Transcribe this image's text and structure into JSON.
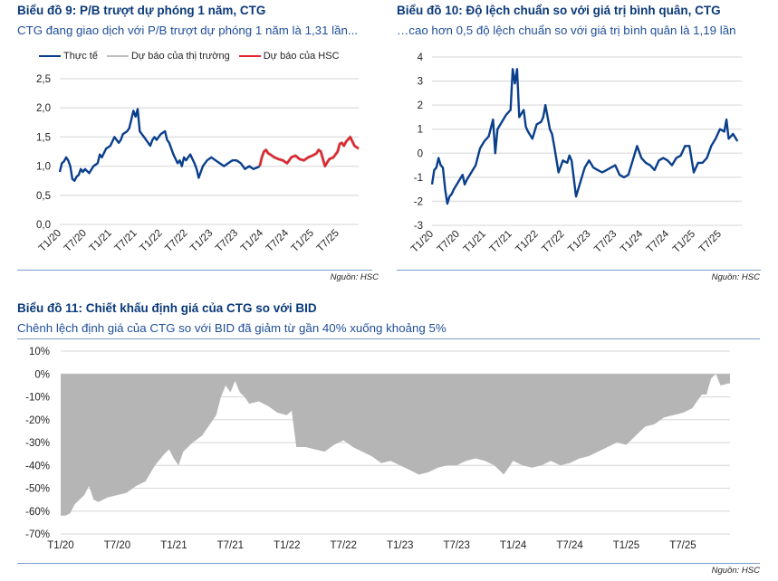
{
  "colors": {
    "actual": "#0a3f8c",
    "market_forecast": "#bfbfbf",
    "hsc_forecast": "#e3242b",
    "area": "#b5b5b5",
    "grid": "#dedede",
    "title": "#0b3a7a",
    "subtitle": "#1f4f9a"
  },
  "chart_data": [
    {
      "id": "chart9",
      "type": "line",
      "title": "Biểu đồ 9: P/B trượt dự phóng 1 năm, CTG",
      "subtitle": "CTG đang giao dịch với P/B trượt dự phóng 1 năm là 1,31 lần...",
      "source": "Nguồn: HSC",
      "legend": [
        "Thực tế",
        "Dự báo của thị trường",
        "Dự báo của HSC"
      ],
      "legend_position": "top",
      "xlabel": "",
      "ylabel": "",
      "ylim": [
        0,
        2.5
      ],
      "yticks": [
        "0,0",
        "0,5",
        "1,0",
        "1,5",
        "2,0",
        "2,5"
      ],
      "ytick_values": [
        0,
        0.5,
        1.0,
        1.5,
        2.0,
        2.5
      ],
      "grid": true,
      "x_tick_labels": [
        "T1/20",
        "T7/20",
        "T1/21",
        "T7/21",
        "T1/22",
        "T7/22",
        "T1/23",
        "T7/23",
        "T1/24",
        "T7/24",
        "T1/25",
        "T7/25"
      ],
      "x_start": "T1/20",
      "x_end_months": 71,
      "series": [
        {
          "name": "Thực tế",
          "months": [
            0,
            0.5,
            1,
            1.5,
            2,
            2.5,
            3,
            3.5,
            4,
            4.5,
            5,
            5.5,
            6,
            7,
            8,
            9,
            9.5,
            10,
            11,
            12,
            13,
            14,
            14.5,
            15,
            16,
            16.5,
            17,
            17.5,
            18,
            18.5,
            19,
            19.5,
            20,
            21,
            21.5,
            22,
            22.5,
            23,
            24,
            25,
            25.5,
            26,
            27,
            28,
            28.5,
            29,
            29.5,
            30,
            31,
            32,
            32.5,
            33,
            33.5,
            34,
            35,
            36,
            37,
            38,
            39,
            40,
            41,
            42,
            43,
            44,
            45,
            46,
            47,
            47.5
          ],
          "values": [
            0.9,
            1.05,
            1.08,
            1.15,
            1.1,
            1.0,
            0.78,
            0.75,
            0.82,
            0.85,
            0.95,
            0.9,
            0.95,
            0.88,
            1.0,
            1.05,
            1.2,
            1.15,
            1.3,
            1.35,
            1.5,
            1.4,
            1.45,
            1.55,
            1.6,
            1.65,
            1.8,
            1.95,
            1.85,
            1.98,
            1.6,
            1.55,
            1.5,
            1.4,
            1.35,
            1.45,
            1.5,
            1.45,
            1.55,
            1.6,
            1.45,
            1.4,
            1.2,
            1.05,
            1.1,
            1.0,
            1.15,
            1.1,
            1.2,
            1.05,
            0.95,
            0.8,
            0.9,
            1.0,
            1.1,
            1.15,
            1.1,
            1.05,
            1.0,
            1.05,
            1.1,
            1.1,
            1.05,
            0.95,
            1.0,
            0.95,
            0.98,
            1.0
          ]
        },
        {
          "name": "Dự báo của HSC",
          "months": [
            47.5,
            48,
            48.5,
            49,
            49.5,
            50,
            51,
            52,
            53,
            54,
            55,
            56,
            57,
            58,
            59,
            60,
            61,
            61.5,
            62,
            63,
            64,
            65,
            66,
            66.5,
            67,
            67.5,
            68,
            69,
            70,
            71
          ],
          "values": [
            1.0,
            1.15,
            1.25,
            1.28,
            1.22,
            1.2,
            1.15,
            1.12,
            1.1,
            1.05,
            1.15,
            1.18,
            1.12,
            1.1,
            1.15,
            1.18,
            1.22,
            1.28,
            1.25,
            1.0,
            1.12,
            1.15,
            1.25,
            1.38,
            1.4,
            1.35,
            1.42,
            1.5,
            1.35,
            1.3
          ]
        }
      ]
    },
    {
      "id": "chart10",
      "type": "line",
      "title": "Biểu đồ 10: Độ lệch chuẩn so với giá trị bình quân, CTG",
      "subtitle": "…cao hơn 0,5 độ lệch chuẩn so với giá trị bình quân là 1,19 lần",
      "source": "Nguồn: HSC",
      "xlabel": "",
      "ylabel": "",
      "ylim": [
        -3,
        4
      ],
      "yticks": [
        "-3",
        "-2",
        "-1",
        "0",
        "1",
        "2",
        "3",
        "4"
      ],
      "ytick_values": [
        -3,
        -2,
        -1,
        0,
        1,
        2,
        3,
        4
      ],
      "grid": true,
      "x_tick_labels": [
        "T1/20",
        "T7/20",
        "T1/21",
        "T7/21",
        "T1/22",
        "T7/22",
        "T1/23",
        "T7/23",
        "T1/24",
        "T7/24",
        "T1/25",
        "T7/25"
      ],
      "x_end_months": 71,
      "series": [
        {
          "name": "Độ lệch chuẩn",
          "months": [
            0,
            0.5,
            1,
            1.5,
            2,
            2.5,
            3,
            3.5,
            4,
            4.5,
            5,
            6,
            7,
            7.5,
            8,
            9,
            10,
            11,
            12,
            13,
            14,
            14.5,
            15,
            16,
            17,
            18,
            18.5,
            19,
            19.5,
            20,
            21,
            21.5,
            22,
            23,
            24,
            25,
            25.5,
            26,
            27,
            27.5,
            28,
            29,
            30,
            31,
            31.5,
            32,
            33,
            34,
            35,
            36,
            37,
            38,
            39,
            40,
            41,
            42,
            43,
            44,
            45,
            46,
            47,
            48,
            49,
            50,
            51,
            52,
            53,
            54,
            55,
            56,
            57,
            58,
            59,
            60,
            61,
            62,
            63,
            64,
            65,
            66,
            67,
            67.5,
            68,
            69,
            70,
            71
          ],
          "values": [
            -1.3,
            -0.7,
            -0.6,
            -0.2,
            -0.5,
            -0.6,
            -1.5,
            -2.1,
            -1.8,
            -1.7,
            -1.5,
            -1.2,
            -0.9,
            -1.3,
            -1.1,
            -0.8,
            -0.5,
            0.2,
            0.5,
            0.7,
            1.4,
            0.0,
            1.0,
            1.3,
            1.6,
            1.8,
            3.5,
            2.9,
            3.5,
            1.5,
            1.8,
            1.1,
            0.9,
            0.6,
            1.2,
            1.3,
            1.5,
            2.0,
            1.0,
            0.8,
            0.3,
            -0.8,
            -0.3,
            -0.4,
            -0.1,
            -0.3,
            -1.8,
            -1.2,
            -0.6,
            -0.3,
            -0.6,
            -0.7,
            -0.8,
            -0.7,
            -0.6,
            -0.5,
            -0.9,
            -1.0,
            -0.9,
            -0.3,
            0.3,
            -0.2,
            -0.4,
            -0.5,
            -0.7,
            -0.3,
            -0.2,
            -0.3,
            -0.5,
            -0.2,
            -0.1,
            0.3,
            0.3,
            -0.8,
            -0.4,
            -0.4,
            -0.2,
            0.3,
            0.6,
            1.0,
            0.9,
            1.4,
            0.6,
            0.8,
            0.5
          ]
        }
      ]
    },
    {
      "id": "chart11",
      "type": "area",
      "title": "Biểu đồ 11: Chiết khấu định giá của CTG so với BID",
      "subtitle": "Chênh lệch định giá của CTG so với BID đã giảm từ gần 40% xuống khoảng 5%",
      "source": "Nguồn: HSC",
      "xlabel": "",
      "ylabel": "",
      "ylim": [
        -70,
        10
      ],
      "yticks": [
        "10%",
        "0%",
        "-10%",
        "-20%",
        "-30%",
        "-40%",
        "-50%",
        "-60%",
        "-70%"
      ],
      "ytick_values": [
        10,
        0,
        -10,
        -20,
        -30,
        -40,
        -50,
        -60,
        -70
      ],
      "grid": true,
      "x_tick_labels": [
        "T1/20",
        "T7/20",
        "T1/21",
        "T7/21",
        "T1/22",
        "T7/22",
        "T1/23",
        "T7/23",
        "T1/24",
        "T7/24",
        "T1/25",
        "T7/25"
      ],
      "x_end_months": 71,
      "series": [
        {
          "name": "Chiết khấu",
          "months": [
            0,
            0.5,
            1,
            1.5,
            2,
            2.5,
            3,
            3.5,
            4,
            4.5,
            5,
            6,
            7,
            8,
            9,
            10,
            11,
            11.5,
            12,
            12.5,
            13,
            14,
            15,
            16,
            16.5,
            17,
            17.5,
            18,
            18.5,
            19,
            19.5,
            20,
            21,
            22,
            23,
            24,
            24.5,
            25,
            26,
            27,
            28,
            29,
            30,
            31,
            32,
            33,
            34,
            35,
            36,
            37,
            38,
            39,
            40,
            41,
            42,
            43,
            44,
            45,
            46,
            47,
            48,
            49,
            50,
            51,
            52,
            53,
            54,
            55,
            56,
            57,
            58,
            59,
            60,
            61,
            62,
            63,
            64,
            65,
            66,
            67,
            68,
            68.5,
            69,
            69.5,
            70,
            71
          ],
          "values": [
            -62,
            -62,
            -61,
            -57,
            -55,
            -53,
            -49,
            -55,
            -56,
            -55,
            -54,
            -53,
            -52,
            -49,
            -47,
            -40,
            -35,
            -33,
            -37,
            -40,
            -34,
            -30,
            -27,
            -21,
            -18,
            -10,
            -5,
            -8,
            -3,
            -8,
            -10,
            -13,
            -12,
            -14,
            -17,
            -18,
            -16,
            -32,
            -32,
            -33,
            -34,
            -31,
            -29,
            -32,
            -34,
            -36,
            -39,
            -38,
            -40,
            -42,
            -44,
            -43,
            -41,
            -40,
            -40,
            -38,
            -37,
            -38,
            -40,
            -44,
            -38,
            -40,
            -41,
            -40,
            -38,
            -40,
            -39,
            -37,
            -36,
            -34,
            -32,
            -30,
            -31,
            -27,
            -23,
            -22,
            -19,
            -18,
            -17,
            -15,
            -9,
            -9,
            -2,
            0,
            -5,
            -4,
            -6,
            -3
          ]
        }
      ]
    }
  ]
}
